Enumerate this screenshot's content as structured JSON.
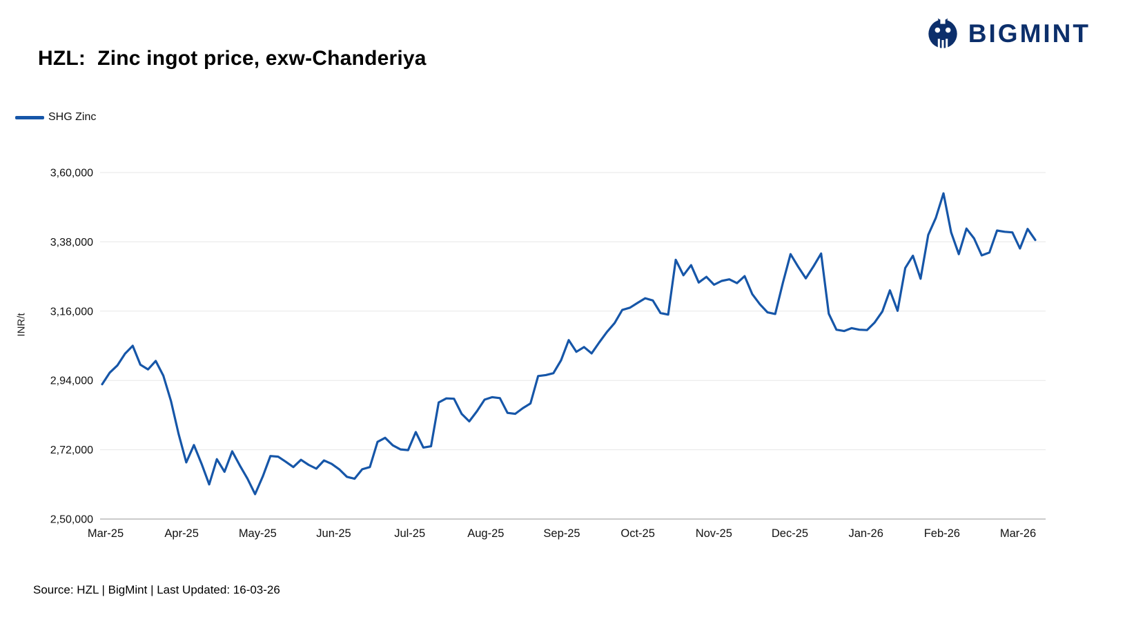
{
  "header": {
    "title": "HZL:  Zinc ingot price, exw-Chanderiya",
    "logo_text": "BIGMINT"
  },
  "legend": {
    "series_label": "SHG Zinc"
  },
  "footer": {
    "source_text": "Source: HZL | BigMint | Last Updated: 16-03-26"
  },
  "chart_data": {
    "type": "line",
    "title": "HZL: Zinc ingot price, exw-Chanderiya",
    "xlabel": "",
    "ylabel": "INR/t",
    "ylim": [
      250000,
      360000
    ],
    "grid": "horizontal",
    "legend_position": "top-left",
    "line_color": "#1656A8",
    "x_tick_labels": [
      "Mar-25",
      "Apr-25",
      "May-25",
      "Jun-25",
      "Jul-25",
      "Aug-25",
      "Sep-25",
      "Oct-25",
      "Nov-25",
      "Dec-25",
      "Jan-26",
      "Feb-26",
      "Mar-26"
    ],
    "y_ticks": [
      {
        "value": 250000,
        "label": "2,50,000"
      },
      {
        "value": 272000,
        "label": "2,72,000"
      },
      {
        "value": 294000,
        "label": "2,94,000"
      },
      {
        "value": 316000,
        "label": "3,16,000"
      },
      {
        "value": 338000,
        "label": "3,38,000"
      },
      {
        "value": 360000,
        "label": "3,60,000"
      }
    ],
    "series": [
      {
        "name": "SHG Zinc",
        "color": "#1656A8",
        "values": [
          292800,
          296500,
          298800,
          302500,
          305000,
          299000,
          297500,
          300200,
          295500,
          287500,
          277000,
          268000,
          273500,
          267500,
          261000,
          269000,
          265000,
          271500,
          267000,
          262800,
          257900,
          263500,
          270000,
          269800,
          268200,
          266500,
          268800,
          267200,
          266000,
          268600,
          267500,
          265800,
          263400,
          262800,
          265800,
          266500,
          274500,
          275800,
          273400,
          272100,
          271900,
          277600,
          272700,
          273100,
          287000,
          288300,
          288200,
          283400,
          281000,
          284200,
          287900,
          288700,
          288400,
          283700,
          283400,
          285200,
          286700,
          295400,
          295700,
          296300,
          300400,
          306800,
          303100,
          304600,
          302600,
          306100,
          309400,
          312200,
          316400,
          317100,
          318600,
          320100,
          319400,
          315400,
          314900,
          332300,
          327400,
          330600,
          325100,
          326900,
          324400,
          325600,
          326100,
          324900,
          327100,
          321400,
          318200,
          315600,
          315100,
          325000,
          334100,
          330100,
          326400,
          330200,
          334300,
          315200,
          310100,
          309700,
          310600,
          310100,
          310000,
          312400,
          315900,
          322600,
          316100,
          329700,
          333600,
          326300,
          340200,
          345600,
          353400,
          341000,
          334100,
          342200,
          339100,
          333700,
          334600,
          341600,
          341200,
          341000,
          335900,
          342100,
          338600
        ]
      }
    ]
  }
}
